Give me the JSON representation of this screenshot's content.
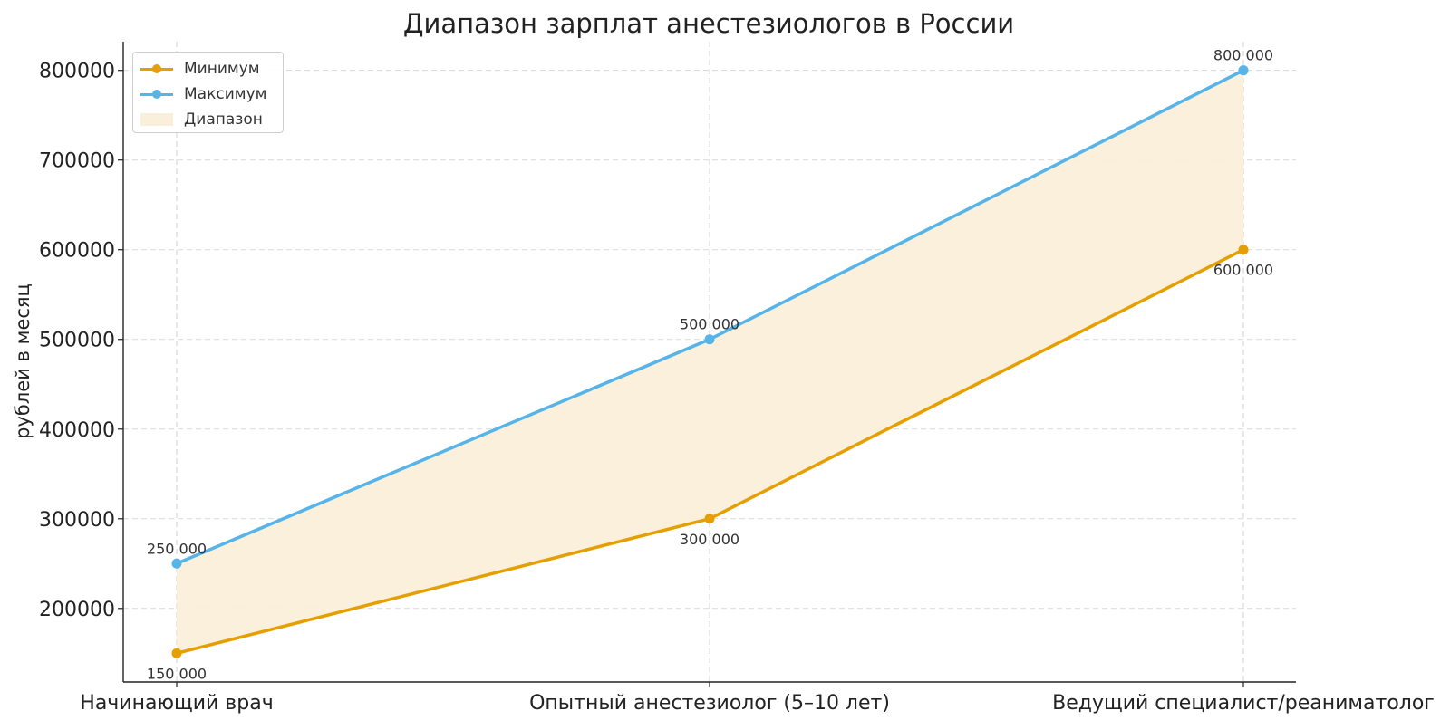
{
  "chart_data": {
    "type": "line",
    "title": "Диапазон зарплат анестезиологов в России",
    "xlabel": "",
    "ylabel": "рублей в месяц",
    "categories": [
      "Начинающий врач",
      "Опытный анестезиолог (5–10 лет)",
      "Ведущий специалист/реаниматолог"
    ],
    "series": [
      {
        "name": "Минимум",
        "values": [
          150000,
          300000,
          600000
        ],
        "color": "#E69F00",
        "labels": [
          "150 000",
          "300 000",
          "600 000"
        ]
      },
      {
        "name": "Максимум",
        "values": [
          250000,
          500000,
          800000
        ],
        "color": "#56B4E9",
        "labels": [
          "250 000",
          "500 000",
          "800 000"
        ]
      }
    ],
    "range_fill": {
      "name": "Диапазон",
      "color": "#FAEFDA"
    },
    "ylim": [
      118000,
      832000
    ],
    "yticks": [
      200000,
      300000,
      400000,
      500000,
      600000,
      700000,
      800000
    ],
    "ytick_labels": [
      "200000",
      "300000",
      "400000",
      "500000",
      "600000",
      "700000",
      "800000"
    ],
    "grid": true,
    "legend_position": "top-left"
  }
}
